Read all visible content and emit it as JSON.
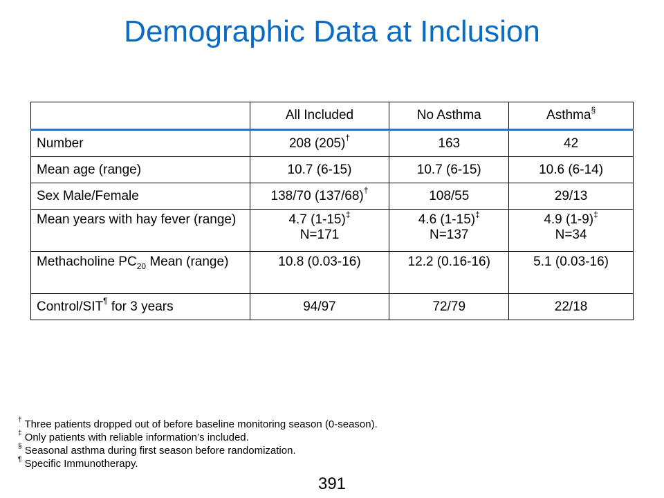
{
  "title": "Demographic Data at Inclusion",
  "table": {
    "headers": [
      "",
      "All Included",
      "No Asthma",
      "Asthma"
    ],
    "header_asthma_mark": "§",
    "rows": {
      "number": {
        "label": "Number",
        "all": "208 (205)",
        "all_mark": "†",
        "no_asthma": "163",
        "asthma": "42"
      },
      "mean_age": {
        "label": "Mean age (range)",
        "all": "10.7 (6-15)",
        "no_asthma": "10.7 (6-15)",
        "asthma": "10.6 (6-14)"
      },
      "sex": {
        "label": "Sex Male/Female",
        "all": "138/70 (137/68)",
        "all_mark": "†",
        "no_asthma": "108/55",
        "asthma": "29/13"
      },
      "hay_fever": {
        "label": "Mean years with hay fever (range)",
        "all": "4.7 (1-15)",
        "all_mark": "‡",
        "all_n": "N=171",
        "no_asthma": "4.6 (1-15)",
        "no_asthma_mark": "‡",
        "no_asthma_n": "N=137",
        "asthma": "4.9 (1-9)",
        "asthma_mark": "‡",
        "asthma_n": "N=34"
      },
      "methacholine": {
        "label_pre": "Methacholine PC",
        "label_sub": "20",
        "label_post": " Mean (range)",
        "all": "10.8 (0.03-16)",
        "no_asthma": "12.2 (0.16-16)",
        "asthma": "5.1 (0.03-16)"
      },
      "control": {
        "label_pre": "Control/SIT",
        "label_mark": "¶",
        "label_post": " for 3 years",
        "all": "94/97",
        "no_asthma": "72/79",
        "asthma": "22/18"
      }
    }
  },
  "footnotes": [
    {
      "mark": "†",
      "text": " Three patients dropped out of before baseline monitoring season (0-season)."
    },
    {
      "mark": "‡",
      "text": " Only patients with reliable information’s included."
    },
    {
      "mark": "§",
      "text": " Seasonal asthma during first season before randomization."
    },
    {
      "mark": "¶",
      "text": " Specific Immunotherapy."
    }
  ],
  "page_number": "391"
}
